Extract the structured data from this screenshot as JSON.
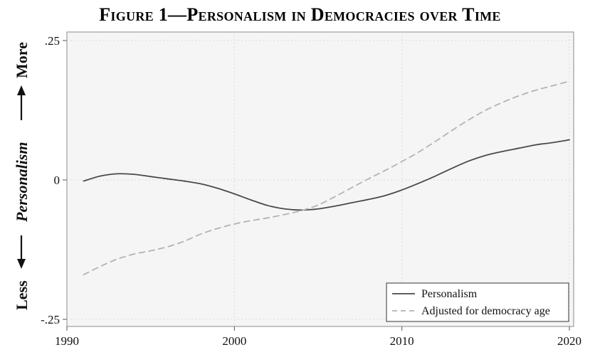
{
  "chart_data": {
    "type": "line",
    "title": "Figure 1—Personalism in Democracies over Time",
    "ylabel": "Personalism",
    "ylabel_less": "Less",
    "ylabel_more": "More",
    "xlabel": "",
    "xlim": [
      1990,
      2020
    ],
    "ylim": [
      -0.25,
      0.25
    ],
    "x_ticks": [
      1990,
      2000,
      2010,
      2020
    ],
    "x_tick_labels": [
      "1990",
      "2000",
      "2010",
      "2020"
    ],
    "y_ticks": [
      -0.25,
      0,
      0.25
    ],
    "y_tick_labels": [
      "-.25",
      "0",
      ".25"
    ],
    "grid": true,
    "legend_position": "bottom-right",
    "series": [
      {
        "name": "Personalism",
        "style": "solid",
        "color": "#4a4a4a",
        "x": [
          1991,
          1992,
          1993,
          1994,
          1995,
          1996,
          1997,
          1998,
          1999,
          2000,
          2001,
          2002,
          2003,
          2004,
          2005,
          2006,
          2007,
          2008,
          2009,
          2010,
          2011,
          2012,
          2013,
          2014,
          2015,
          2016,
          2017,
          2018,
          2019,
          2020
        ],
        "values": [
          -0.002,
          0.007,
          0.011,
          0.01,
          0.006,
          0.002,
          -0.002,
          -0.007,
          -0.015,
          -0.025,
          -0.036,
          -0.046,
          -0.052,
          -0.054,
          -0.052,
          -0.047,
          -0.041,
          -0.035,
          -0.028,
          -0.018,
          -0.006,
          0.007,
          0.021,
          0.034,
          0.044,
          0.051,
          0.057,
          0.063,
          0.067,
          0.072
        ]
      },
      {
        "name": "Adjusted for democracy age",
        "style": "dashed",
        "color": "#b3b3b3",
        "x": [
          1991,
          1992,
          1993,
          1994,
          1995,
          1996,
          1997,
          1998,
          1999,
          2000,
          2001,
          2002,
          2003,
          2004,
          2005,
          2006,
          2007,
          2008,
          2009,
          2010,
          2011,
          2012,
          2013,
          2014,
          2015,
          2016,
          2017,
          2018,
          2019,
          2020
        ],
        "values": [
          -0.17,
          -0.155,
          -0.142,
          -0.133,
          -0.127,
          -0.12,
          -0.11,
          -0.097,
          -0.087,
          -0.079,
          -0.073,
          -0.068,
          -0.062,
          -0.055,
          -0.045,
          -0.03,
          -0.014,
          0.002,
          0.017,
          0.033,
          0.05,
          0.069,
          0.089,
          0.108,
          0.125,
          0.139,
          0.151,
          0.161,
          0.169,
          0.177
        ]
      }
    ],
    "colors": {
      "plot_background": "#f5f5f5",
      "grid": "#dcdcdc"
    }
  }
}
